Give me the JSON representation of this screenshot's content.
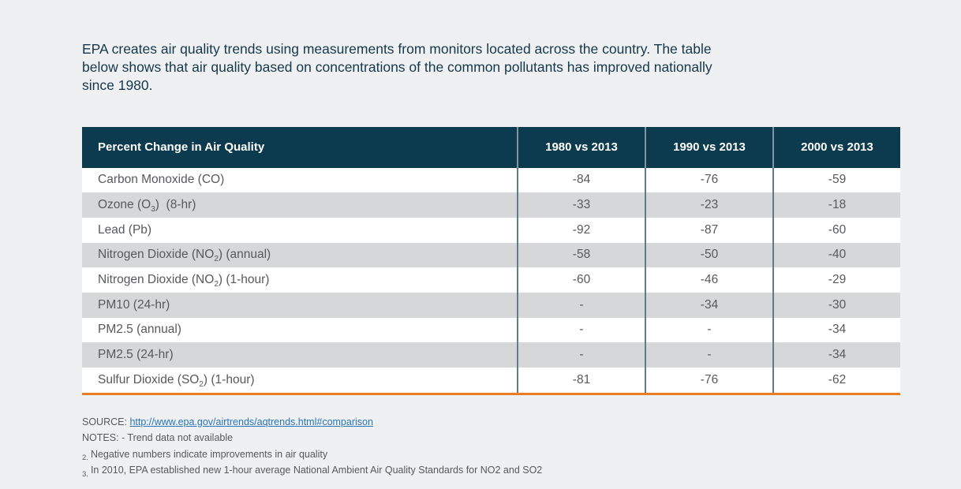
{
  "intro": {
    "lines": [
      "EPA creates air quality trends using measurements from monitors located across the country. The table",
      "below shows that air quality based on concentrations of the common pollutants has improved nationally",
      "since 1980."
    ]
  },
  "table": {
    "columns": [
      "Percent Change in Air Quality",
      "1980 vs 2013",
      "1990 vs 2013",
      "2000 vs 2013"
    ],
    "rows": [
      {
        "pollutant": "Carbon Monoxide (CO)",
        "values": [
          "-84",
          "-76",
          "-59"
        ]
      },
      {
        "pollutant": "Ozone (O~3~)  (8-hr)",
        "values": [
          "-33",
          "-23",
          "-18"
        ]
      },
      {
        "pollutant": "Lead (Pb)",
        "values": [
          "-92",
          "-87",
          "-60"
        ]
      },
      {
        "pollutant": "Nitrogen Dioxide (NO~2~) (annual)",
        "values": [
          "-58",
          "-50",
          "-40"
        ]
      },
      {
        "pollutant": "Nitrogen Dioxide (NO~2~) (1-hour)",
        "values": [
          "-60",
          "-46",
          "-29"
        ]
      },
      {
        "pollutant": "PM10 (24-hr)",
        "values": [
          "-",
          "-34",
          "-30"
        ]
      },
      {
        "pollutant": "PM2.5 (annual)",
        "values": [
          "-",
          "-",
          "-34"
        ]
      },
      {
        "pollutant": "PM2.5 (24-hr)",
        "values": [
          "-",
          "-",
          "-34"
        ]
      },
      {
        "pollutant": "Sulfur Dioxide (SO~2~) (1-hour)",
        "values": [
          "-81",
          "-76",
          "-62"
        ]
      }
    ]
  },
  "footer": {
    "source_label": "SOURCE: ",
    "source_link": "http://www.epa.gov/airtrends/aqtrends.html#comparison",
    "notes_line": "NOTES: - Trend data not available",
    "notes": [
      {
        "sub": "2.",
        "text": "Negative numbers indicate improvements in air quality"
      },
      {
        "sub": "3.",
        "text": "In 2010, EPA established new 1-hour average National Ambient Air Quality Standards for NO2 and SO2"
      }
    ]
  },
  "colors": {
    "page_bg": "#eef0f2",
    "intro_color": "#16384c",
    "header_bg": "#0c3a4e",
    "header_text": "#ffffff",
    "alt_row": "#d5d7d8",
    "body_text": "#58595b",
    "divider": "#5e7c8a",
    "divider_header": "#7f95a0",
    "accent_orange": "#e87d26",
    "link_blue": "#2b76b9"
  }
}
